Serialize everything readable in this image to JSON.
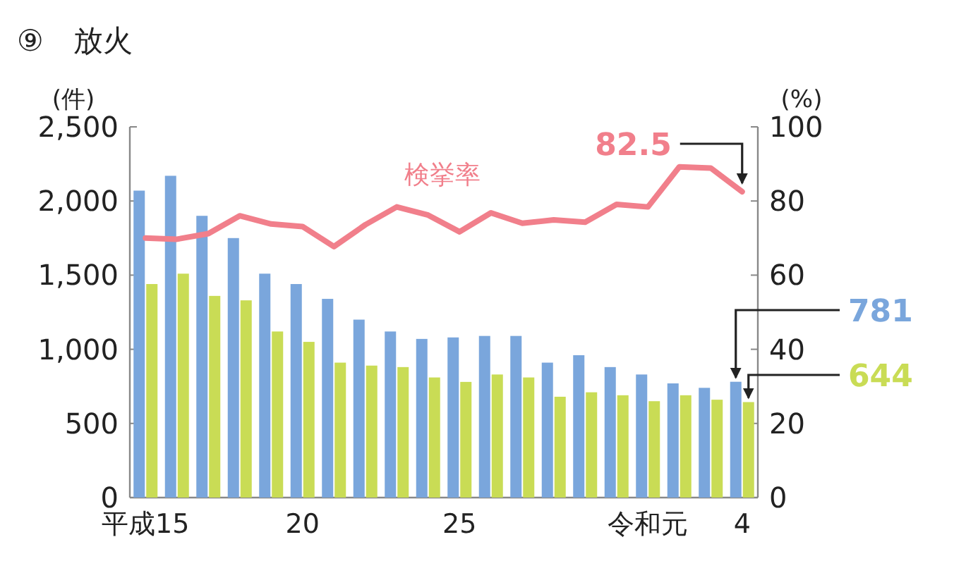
{
  "chart_data": {
    "type": "bar",
    "title": "⑨　放火",
    "ylabel": "(件)",
    "y2label": "(%)",
    "categories": [
      "平成15",
      null,
      null,
      null,
      null,
      "20",
      null,
      null,
      null,
      null,
      "25",
      null,
      null,
      null,
      null,
      null,
      "令和元",
      null,
      null,
      "4"
    ],
    "series": [
      {
        "color": "#7aa6dc",
        "values": [
          2070,
          2170,
          1900,
          1750,
          1510,
          1440,
          1340,
          1200,
          1120,
          1070,
          1080,
          1090,
          1090,
          910,
          960,
          880,
          830,
          770,
          740,
          781
        ],
        "value_labels": [
          null,
          null,
          null,
          null,
          null,
          null,
          null,
          null,
          null,
          null,
          null,
          null,
          null,
          null,
          null,
          null,
          null,
          null,
          null,
          "781"
        ]
      },
      {
        "color": "#c9dc55",
        "values": [
          1440,
          1510,
          1360,
          1330,
          1120,
          1050,
          910,
          890,
          880,
          810,
          780,
          830,
          810,
          680,
          710,
          690,
          650,
          690,
          660,
          644
        ],
        "value_labels": [
          null,
          null,
          null,
          null,
          null,
          null,
          null,
          null,
          null,
          null,
          null,
          null,
          null,
          null,
          null,
          null,
          null,
          null,
          null,
          "644"
        ]
      },
      {
        "type": "line",
        "name": "検挙率",
        "axis": "y2",
        "color": "#f17f8b",
        "values": [
          70.0,
          69.7,
          71.2,
          76.0,
          73.8,
          73.1,
          67.7,
          73.6,
          78.4,
          76.2,
          71.7,
          76.8,
          74.0,
          74.9,
          74.3,
          79.1,
          78.4,
          89.2,
          88.9,
          82.5
        ],
        "value_labels": [
          null,
          null,
          null,
          null,
          null,
          null,
          null,
          null,
          null,
          null,
          null,
          null,
          null,
          null,
          null,
          null,
          null,
          null,
          null,
          "82.5"
        ]
      }
    ],
    "ylim": [
      0,
      2500
    ],
    "yticks": [
      0,
      500,
      {
        "value": 1000,
        "label": "1,000"
      },
      {
        "value": 1500,
        "label": "1,500"
      },
      {
        "value": 2000,
        "label": "2,000"
      },
      {
        "value": 2500,
        "label": "2,500"
      }
    ],
    "y2lim": [
      0,
      100
    ],
    "y2ticks": [
      0,
      20,
      40,
      60,
      80,
      100
    ]
  }
}
